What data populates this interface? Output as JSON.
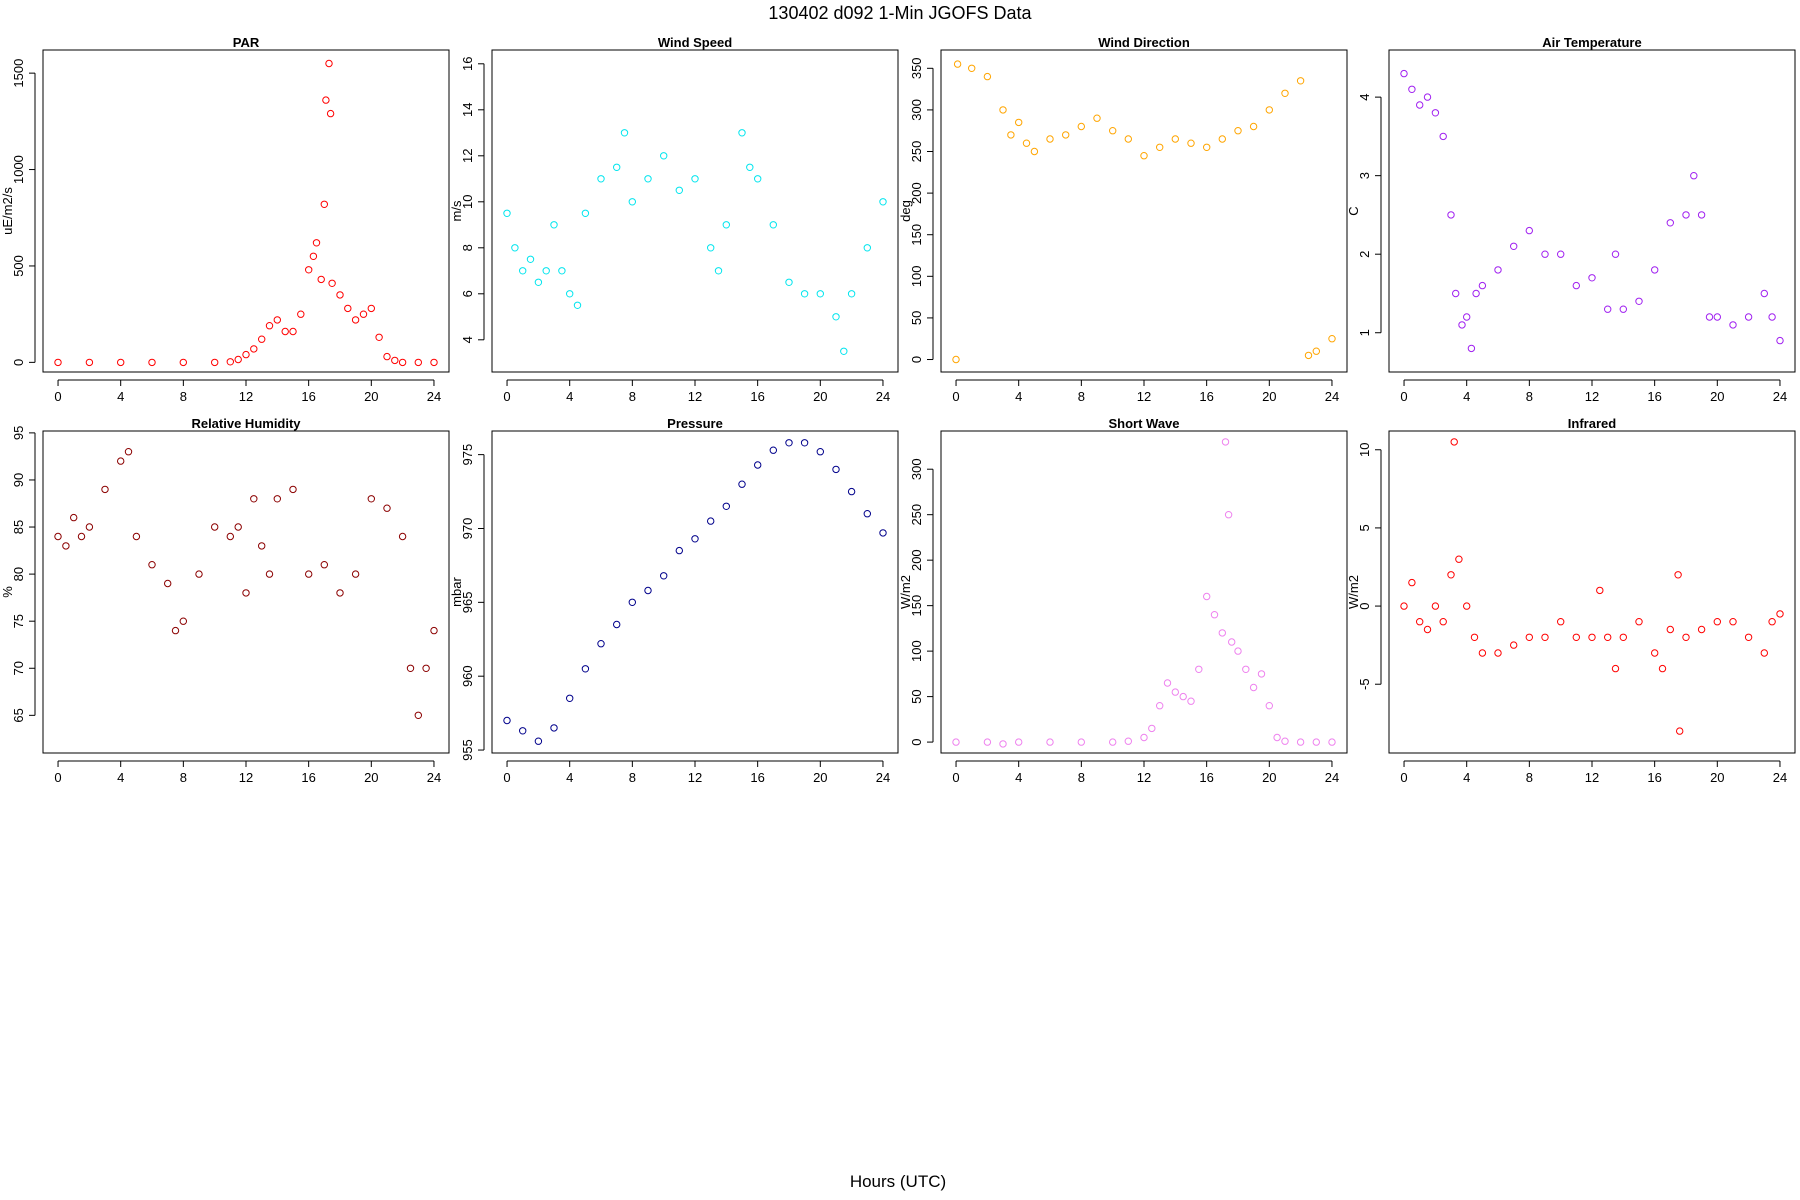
{
  "figure": {
    "title": "130402   d092   1-Min  JGOFS Data",
    "xlabel": "Hours (UTC)"
  },
  "chart_data": [
    {
      "type": "scatter",
      "title": "PAR",
      "ylabel": "uE/m2/s",
      "color": "#ff0000",
      "xlim": [
        -0.96,
        24.96
      ],
      "ylim": [
        -50,
        1620
      ],
      "xticks": [
        0,
        4,
        8,
        12,
        16,
        20,
        24
      ],
      "yticks": [
        0,
        500,
        1000,
        1500
      ],
      "points": [
        [
          0,
          0
        ],
        [
          2,
          0
        ],
        [
          4,
          0
        ],
        [
          6,
          0
        ],
        [
          8,
          0
        ],
        [
          10,
          0
        ],
        [
          11,
          3
        ],
        [
          11.5,
          15
        ],
        [
          12,
          40
        ],
        [
          12.5,
          70
        ],
        [
          13,
          120
        ],
        [
          13.5,
          190
        ],
        [
          14,
          220
        ],
        [
          14.5,
          160
        ],
        [
          15,
          160
        ],
        [
          15.5,
          250
        ],
        [
          16,
          480
        ],
        [
          16.3,
          550
        ],
        [
          16.5,
          620
        ],
        [
          16.8,
          430
        ],
        [
          17,
          820
        ],
        [
          17.1,
          1360
        ],
        [
          17.3,
          1550
        ],
        [
          17.4,
          1290
        ],
        [
          17.5,
          410
        ],
        [
          18,
          350
        ],
        [
          18.5,
          280
        ],
        [
          19,
          220
        ],
        [
          19.5,
          250
        ],
        [
          20,
          280
        ],
        [
          20.5,
          130
        ],
        [
          21,
          30
        ],
        [
          21.5,
          10
        ],
        [
          22,
          0
        ],
        [
          23,
          0
        ],
        [
          24,
          0
        ]
      ]
    },
    {
      "type": "scatter",
      "title": "Wind Speed",
      "ylabel": "m/s",
      "color": "#00e5ee",
      "xlim": [
        -0.96,
        24.96
      ],
      "ylim": [
        2.6,
        16.6
      ],
      "xticks": [
        0,
        4,
        8,
        12,
        16,
        20,
        24
      ],
      "yticks": [
        4,
        6,
        8,
        10,
        12,
        14,
        16
      ],
      "points": [
        [
          0,
          9.5
        ],
        [
          0.5,
          8
        ],
        [
          1,
          7
        ],
        [
          1.5,
          7.5
        ],
        [
          2,
          6.5
        ],
        [
          2.5,
          7
        ],
        [
          3,
          9
        ],
        [
          3.5,
          7
        ],
        [
          4,
          6
        ],
        [
          4.5,
          5.5
        ],
        [
          5,
          9.5
        ],
        [
          6,
          11
        ],
        [
          7,
          11.5
        ],
        [
          7.5,
          13
        ],
        [
          8,
          10
        ],
        [
          9,
          11
        ],
        [
          10,
          12
        ],
        [
          11,
          10.5
        ],
        [
          12,
          11
        ],
        [
          13,
          8
        ],
        [
          13.5,
          7
        ],
        [
          14,
          9
        ],
        [
          15,
          13
        ],
        [
          15.5,
          11.5
        ],
        [
          16,
          11
        ],
        [
          17,
          9
        ],
        [
          18,
          6.5
        ],
        [
          19,
          6
        ],
        [
          20,
          6
        ],
        [
          21,
          5
        ],
        [
          21.5,
          3.5
        ],
        [
          22,
          6
        ],
        [
          23,
          8
        ],
        [
          24,
          10
        ]
      ]
    },
    {
      "type": "scatter",
      "title": "Wind Direction",
      "ylabel": "deg",
      "color": "#ffa500",
      "xlim": [
        -0.96,
        24.96
      ],
      "ylim": [
        -15,
        372
      ],
      "xticks": [
        0,
        4,
        8,
        12,
        16,
        20,
        24
      ],
      "yticks": [
        0,
        50,
        100,
        150,
        200,
        250,
        300,
        350
      ],
      "points": [
        [
          0,
          0
        ],
        [
          0.1,
          355
        ],
        [
          1,
          350
        ],
        [
          2,
          340
        ],
        [
          3,
          300
        ],
        [
          3.5,
          270
        ],
        [
          4,
          285
        ],
        [
          4.5,
          260
        ],
        [
          5,
          250
        ],
        [
          6,
          265
        ],
        [
          7,
          270
        ],
        [
          8,
          280
        ],
        [
          9,
          290
        ],
        [
          10,
          275
        ],
        [
          11,
          265
        ],
        [
          12,
          245
        ],
        [
          13,
          255
        ],
        [
          14,
          265
        ],
        [
          15,
          260
        ],
        [
          16,
          255
        ],
        [
          17,
          265
        ],
        [
          18,
          275
        ],
        [
          19,
          280
        ],
        [
          20,
          300
        ],
        [
          21,
          320
        ],
        [
          22,
          335
        ],
        [
          22.5,
          5
        ],
        [
          23,
          10
        ],
        [
          24,
          25
        ]
      ]
    },
    {
      "type": "scatter",
      "title": "Air Temperature",
      "ylabel": "C",
      "color": "#a020f0",
      "xlim": [
        -0.96,
        24.96
      ],
      "ylim": [
        0.5,
        4.6
      ],
      "xticks": [
        0,
        4,
        8,
        12,
        16,
        20,
        24
      ],
      "yticks": [
        1,
        2,
        3,
        4
      ],
      "points": [
        [
          0,
          4.3
        ],
        [
          0.5,
          4.1
        ],
        [
          1,
          3.9
        ],
        [
          1.5,
          4
        ],
        [
          2,
          3.8
        ],
        [
          2.5,
          3.5
        ],
        [
          3,
          2.5
        ],
        [
          3.3,
          1.5
        ],
        [
          3.7,
          1.1
        ],
        [
          4,
          1.2
        ],
        [
          4.3,
          0.8
        ],
        [
          4.6,
          1.5
        ],
        [
          5,
          1.6
        ],
        [
          6,
          1.8
        ],
        [
          7,
          2.1
        ],
        [
          8,
          2.3
        ],
        [
          9,
          2
        ],
        [
          10,
          2
        ],
        [
          11,
          1.6
        ],
        [
          12,
          1.7
        ],
        [
          13,
          1.3
        ],
        [
          13.5,
          2
        ],
        [
          14,
          1.3
        ],
        [
          15,
          1.4
        ],
        [
          16,
          1.8
        ],
        [
          17,
          2.4
        ],
        [
          18,
          2.5
        ],
        [
          18.5,
          3
        ],
        [
          19,
          2.5
        ],
        [
          19.5,
          1.2
        ],
        [
          20,
          1.2
        ],
        [
          21,
          1.1
        ],
        [
          22,
          1.2
        ],
        [
          23,
          1.5
        ],
        [
          23.5,
          1.2
        ],
        [
          24,
          0.9
        ]
      ]
    },
    {
      "type": "scatter",
      "title": "Relative Humidity",
      "ylabel": "%",
      "color": "#8b0000",
      "xlim": [
        -0.96,
        24.96
      ],
      "ylim": [
        61,
        95.2
      ],
      "xticks": [
        0,
        4,
        8,
        12,
        16,
        20,
        24
      ],
      "yticks": [
        65,
        70,
        75,
        80,
        85,
        90,
        95
      ],
      "points": [
        [
          0,
          84
        ],
        [
          0.5,
          83
        ],
        [
          1,
          86
        ],
        [
          1.5,
          84
        ],
        [
          2,
          85
        ],
        [
          3,
          89
        ],
        [
          4,
          92
        ],
        [
          4.5,
          93
        ],
        [
          5,
          84
        ],
        [
          6,
          81
        ],
        [
          7,
          79
        ],
        [
          7.5,
          74
        ],
        [
          8,
          75
        ],
        [
          9,
          80
        ],
        [
          10,
          85
        ],
        [
          11,
          84
        ],
        [
          11.5,
          85
        ],
        [
          12,
          78
        ],
        [
          12.5,
          88
        ],
        [
          13,
          83
        ],
        [
          13.5,
          80
        ],
        [
          14,
          88
        ],
        [
          15,
          89
        ],
        [
          16,
          80
        ],
        [
          17,
          81
        ],
        [
          18,
          78
        ],
        [
          19,
          80
        ],
        [
          20,
          88
        ],
        [
          21,
          87
        ],
        [
          22,
          84
        ],
        [
          22.5,
          70
        ],
        [
          23,
          65
        ],
        [
          23.5,
          70
        ],
        [
          24,
          74
        ]
      ]
    },
    {
      "type": "scatter",
      "title": "Pressure",
      "ylabel": "mbar",
      "color": "#00008b",
      "xlim": [
        -0.96,
        24.96
      ],
      "ylim": [
        954.8,
        976.6
      ],
      "xticks": [
        0,
        4,
        8,
        12,
        16,
        20,
        24
      ],
      "yticks": [
        955,
        960,
        965,
        970,
        975
      ],
      "points": [
        [
          0,
          957
        ],
        [
          1,
          956.3
        ],
        [
          2,
          955.6
        ],
        [
          3,
          956.5
        ],
        [
          4,
          958.5
        ],
        [
          5,
          960.5
        ],
        [
          6,
          962.2
        ],
        [
          7,
          963.5
        ],
        [
          8,
          965
        ],
        [
          9,
          965.8
        ],
        [
          10,
          966.8
        ],
        [
          11,
          968.5
        ],
        [
          12,
          969.3
        ],
        [
          13,
          970.5
        ],
        [
          14,
          971.5
        ],
        [
          15,
          973
        ],
        [
          16,
          974.3
        ],
        [
          17,
          975.3
        ],
        [
          18,
          975.8
        ],
        [
          19,
          975.8
        ],
        [
          20,
          975.2
        ],
        [
          21,
          974
        ],
        [
          22,
          972.5
        ],
        [
          23,
          971
        ],
        [
          24,
          969.7
        ]
      ]
    },
    {
      "type": "scatter",
      "title": "Short Wave",
      "ylabel": "W/m2",
      "color": "#ee82ee",
      "xlim": [
        -0.96,
        24.96
      ],
      "ylim": [
        -12,
        342
      ],
      "xticks": [
        0,
        4,
        8,
        12,
        16,
        20,
        24
      ],
      "yticks": [
        0,
        50,
        100,
        150,
        200,
        250,
        300
      ],
      "points": [
        [
          0,
          0
        ],
        [
          2,
          0
        ],
        [
          3,
          -2
        ],
        [
          4,
          0
        ],
        [
          6,
          0
        ],
        [
          8,
          0
        ],
        [
          10,
          0
        ],
        [
          11,
          1
        ],
        [
          12,
          5
        ],
        [
          12.5,
          15
        ],
        [
          13,
          40
        ],
        [
          13.5,
          65
        ],
        [
          14,
          55
        ],
        [
          14.5,
          50
        ],
        [
          15,
          45
        ],
        [
          15.5,
          80
        ],
        [
          16,
          160
        ],
        [
          16.5,
          140
        ],
        [
          17,
          120
        ],
        [
          17.2,
          330
        ],
        [
          17.4,
          250
        ],
        [
          17.6,
          110
        ],
        [
          18,
          100
        ],
        [
          18.5,
          80
        ],
        [
          19,
          60
        ],
        [
          19.5,
          75
        ],
        [
          20,
          40
        ],
        [
          20.5,
          5
        ],
        [
          21,
          1
        ],
        [
          22,
          0
        ],
        [
          23,
          0
        ],
        [
          24,
          0
        ]
      ]
    },
    {
      "type": "scatter",
      "title": "Infrared",
      "ylabel": "W/m2",
      "color": "#ff0000",
      "xlim": [
        -0.96,
        24.96
      ],
      "ylim": [
        -9.4,
        11.2
      ],
      "xticks": [
        0,
        4,
        8,
        12,
        16,
        20,
        24
      ],
      "yticks": [
        -5,
        0,
        5,
        10
      ],
      "points": [
        [
          0,
          0
        ],
        [
          0.5,
          1.5
        ],
        [
          1,
          -1
        ],
        [
          1.5,
          -1.5
        ],
        [
          2,
          0
        ],
        [
          2.5,
          -1
        ],
        [
          3,
          2
        ],
        [
          3.2,
          10.5
        ],
        [
          3.5,
          3
        ],
        [
          4,
          0
        ],
        [
          4.5,
          -2
        ],
        [
          5,
          -3
        ],
        [
          6,
          -3
        ],
        [
          7,
          -2.5
        ],
        [
          8,
          -2
        ],
        [
          9,
          -2
        ],
        [
          10,
          -1
        ],
        [
          11,
          -2
        ],
        [
          12,
          -2
        ],
        [
          12.5,
          1
        ],
        [
          13,
          -2
        ],
        [
          13.5,
          -4
        ],
        [
          14,
          -2
        ],
        [
          15,
          -1
        ],
        [
          16,
          -3
        ],
        [
          16.5,
          -4
        ],
        [
          17,
          -1.5
        ],
        [
          17.5,
          2
        ],
        [
          17.6,
          -8
        ],
        [
          18,
          -2
        ],
        [
          19,
          -1.5
        ],
        [
          20,
          -1
        ],
        [
          21,
          -1
        ],
        [
          22,
          -2
        ],
        [
          23,
          -3
        ],
        [
          23.5,
          -1
        ],
        [
          24,
          -0.5
        ]
      ]
    }
  ]
}
